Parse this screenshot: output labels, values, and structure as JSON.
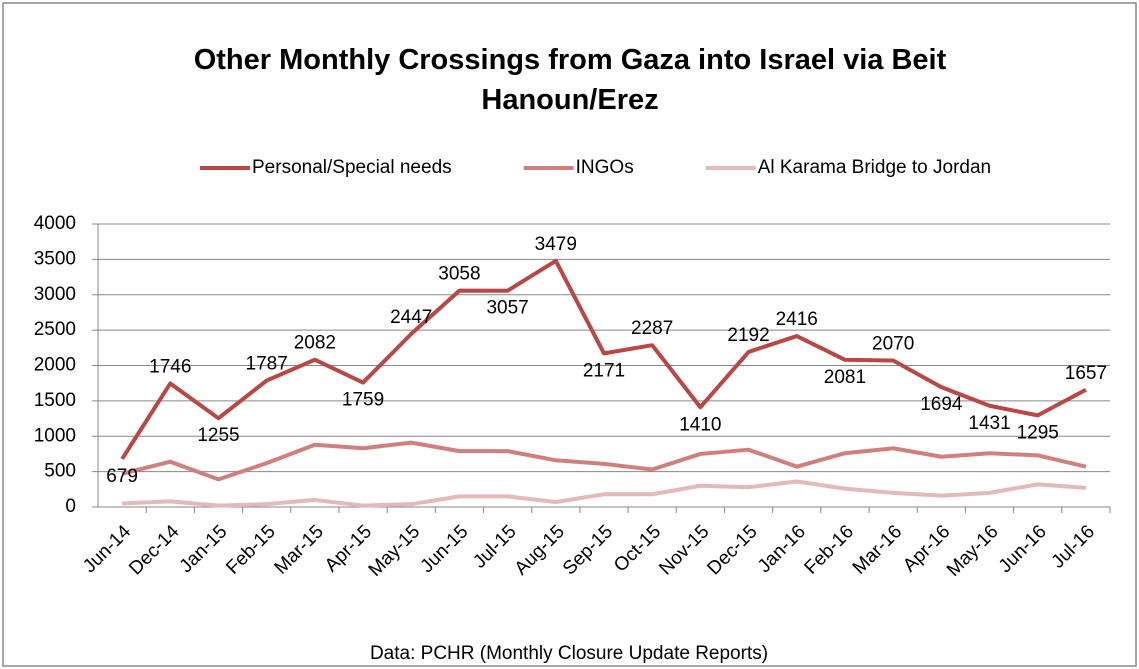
{
  "chart_data": {
    "type": "line",
    "title": "Other Monthly Crossings from Gaza into Israel via Beit Hanoun/Erez",
    "source": "Data: PCHR (Monthly Closure Update Reports)",
    "categories": [
      "Jun-14",
      "Dec-14",
      "Jan-15",
      "Feb-15",
      "Mar-15",
      "Apr-15",
      "May-15",
      "Jun-15",
      "Jul-15",
      "Aug-15",
      "Sep-15",
      "Oct-15",
      "Nov-15",
      "Dec-15",
      "Jan-16",
      "Feb-16",
      "Mar-16",
      "Apr-16",
      "May-16",
      "Jun-16",
      "Jul-16"
    ],
    "series": [
      {
        "name": "Personal/Special needs",
        "color": "#bb4744",
        "labels": true,
        "values": [
          679,
          1746,
          1255,
          1787,
          2082,
          1759,
          2447,
          3058,
          3057,
          3479,
          2171,
          2287,
          1410,
          2192,
          2416,
          2081,
          2070,
          1694,
          1431,
          1295,
          1657
        ]
      },
      {
        "name": "INGOs",
        "color": "#d07f7c",
        "labels": false,
        "values": [
          470,
          640,
          390,
          620,
          880,
          830,
          910,
          790,
          790,
          660,
          610,
          530,
          750,
          810,
          570,
          760,
          830,
          710,
          760,
          730,
          570
        ]
      },
      {
        "name": "Al Karama Bridge to Jordan",
        "color": "#e4b9b7",
        "labels": false,
        "values": [
          50,
          80,
          20,
          40,
          100,
          20,
          40,
          150,
          150,
          70,
          180,
          180,
          300,
          280,
          360,
          260,
          200,
          160,
          200,
          320,
          270
        ]
      }
    ],
    "ylim": [
      0,
      4000
    ],
    "yticks": [
      0,
      500,
      1000,
      1500,
      2000,
      2500,
      3000,
      3500,
      4000
    ],
    "grid": true
  }
}
